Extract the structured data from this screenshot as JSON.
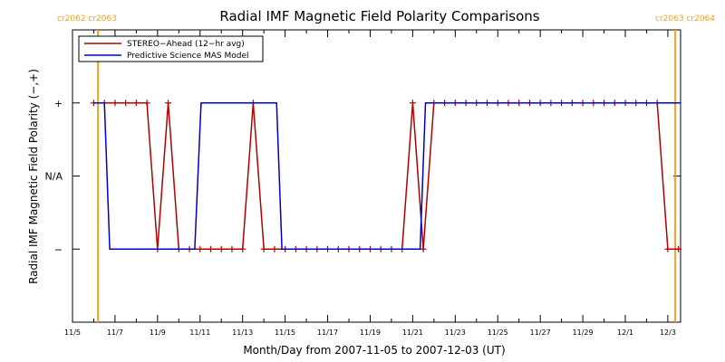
{
  "chart_data": {
    "type": "line",
    "title": "Radial IMF Magnetic Field Polarity Comparisons",
    "xlabel": "Month/Day from 2007-11-05 to 2007-12-03 (UT)",
    "ylabel": "Radial IMF Magnetic Field Polarity (−,+)",
    "x_unit": "days",
    "xlim": [
      0,
      28.6
    ],
    "ylim": [
      -2,
      2
    ],
    "x_ticks": [
      {
        "x": 0,
        "label": "11/5"
      },
      {
        "x": 2,
        "label": "11/7"
      },
      {
        "x": 4,
        "label": "11/9"
      },
      {
        "x": 6,
        "label": "11/11"
      },
      {
        "x": 8,
        "label": "11/13"
      },
      {
        "x": 10,
        "label": "11/15"
      },
      {
        "x": 12,
        "label": "11/17"
      },
      {
        "x": 14,
        "label": "11/19"
      },
      {
        "x": 16,
        "label": "11/21"
      },
      {
        "x": 18,
        "label": "11/23"
      },
      {
        "x": 20,
        "label": "11/25"
      },
      {
        "x": 22,
        "label": "11/27"
      },
      {
        "x": 24,
        "label": "11/29"
      },
      {
        "x": 26,
        "label": "12/1"
      },
      {
        "x": 28,
        "label": "12/3"
      }
    ],
    "y_ticks": [
      {
        "y": 1,
        "label": "+"
      },
      {
        "y": 0,
        "label": "N/A"
      },
      {
        "y": -1,
        "label": "−"
      }
    ],
    "vlines": [
      {
        "x": 1.2,
        "color": "#f0a020",
        "labels": [
          "cr2062",
          "cr2063"
        ],
        "label_side": "left"
      },
      {
        "x": 28.35,
        "color": "#f0a020",
        "labels": [
          "cr2063",
          "cr2064"
        ],
        "label_side": "right"
      }
    ],
    "legend_position": "top-left",
    "series": [
      {
        "name": "STEREO−Ahead (12−hr avg)",
        "color": "#b00000",
        "marker": "+",
        "points": [
          [
            1.0,
            1
          ],
          [
            1.5,
            1
          ],
          [
            2.0,
            1
          ],
          [
            2.5,
            1
          ],
          [
            3.0,
            1
          ],
          [
            3.5,
            1
          ],
          [
            4.0,
            -1
          ],
          [
            4.5,
            1
          ],
          [
            5.0,
            -1
          ],
          [
            5.5,
            -1
          ],
          [
            6.0,
            -1
          ],
          [
            6.5,
            -1
          ],
          [
            7.0,
            -1
          ],
          [
            7.5,
            -1
          ],
          [
            8.0,
            -1
          ],
          [
            8.5,
            1
          ],
          [
            9.0,
            -1
          ],
          [
            9.5,
            -1
          ],
          [
            10.0,
            -1
          ],
          [
            10.5,
            -1
          ],
          [
            11.0,
            -1
          ],
          [
            11.5,
            -1
          ],
          [
            12.0,
            -1
          ],
          [
            12.5,
            -1
          ],
          [
            13.0,
            -1
          ],
          [
            13.5,
            -1
          ],
          [
            14.0,
            -1
          ],
          [
            14.5,
            -1
          ],
          [
            15.0,
            -1
          ],
          [
            15.5,
            -1
          ],
          [
            16.0,
            1
          ],
          [
            16.5,
            -1
          ],
          [
            17.0,
            1
          ],
          [
            17.5,
            1
          ],
          [
            18.0,
            1
          ],
          [
            18.5,
            1
          ],
          [
            19.0,
            1
          ],
          [
            19.5,
            1
          ],
          [
            20.0,
            1
          ],
          [
            20.5,
            1
          ],
          [
            21.0,
            1
          ],
          [
            21.5,
            1
          ],
          [
            22.0,
            1
          ],
          [
            22.5,
            1
          ],
          [
            23.0,
            1
          ],
          [
            23.5,
            1
          ],
          [
            24.0,
            1
          ],
          [
            24.5,
            1
          ],
          [
            25.0,
            1
          ],
          [
            25.5,
            1
          ],
          [
            26.0,
            1
          ],
          [
            26.5,
            1
          ],
          [
            27.0,
            1
          ],
          [
            27.5,
            1
          ],
          [
            28.0,
            -1
          ],
          [
            28.5,
            -1
          ]
        ]
      },
      {
        "name": "Predictive Science MAS Model",
        "color": "#0000c0",
        "marker": "none",
        "points": [
          [
            1.0,
            1
          ],
          [
            1.5,
            1
          ],
          [
            1.75,
            -1
          ],
          [
            5.75,
            -1
          ],
          [
            6.05,
            1
          ],
          [
            9.6,
            1
          ],
          [
            9.85,
            -1
          ],
          [
            16.35,
            -1
          ],
          [
            16.6,
            1
          ],
          [
            28.6,
            1
          ]
        ]
      }
    ]
  }
}
